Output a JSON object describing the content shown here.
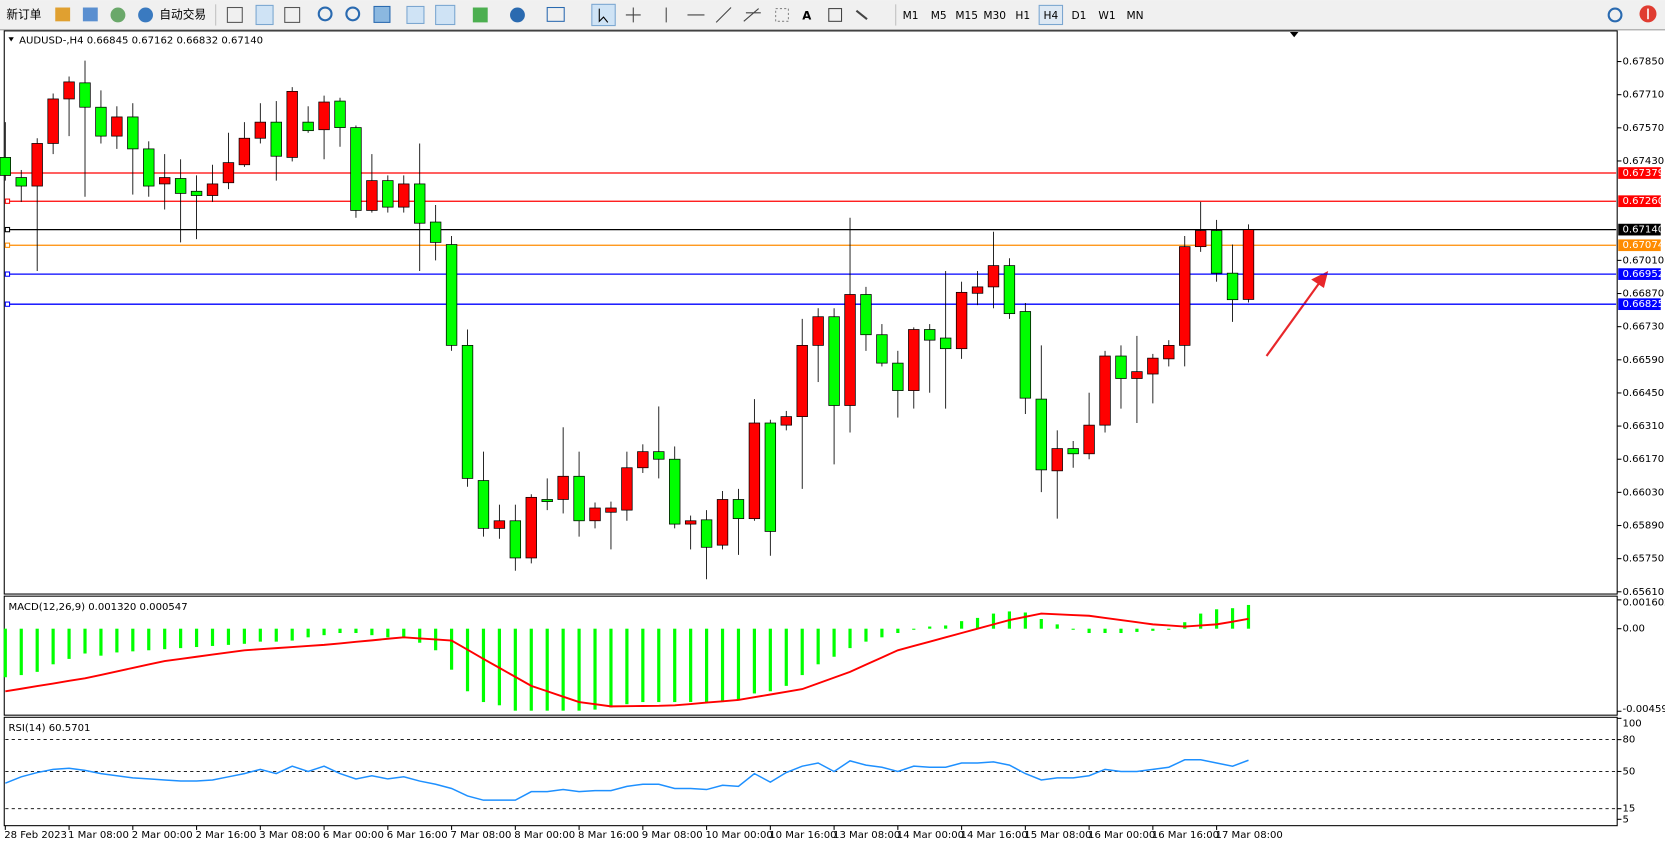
{
  "toolbar": {
    "new_order": "新订单",
    "auto_trading": "自动交易",
    "timeframes": [
      "M1",
      "M5",
      "M15",
      "M30",
      "H1",
      "H4",
      "D1",
      "W1",
      "MN"
    ],
    "active_timeframe": "H4"
  },
  "chart_data": [
    {
      "type": "candlestick",
      "title": "AUDUSD-,H4  0.66845 0.67162 0.66832 0.67140",
      "up_color": "#ff0000",
      "down_color": "#00ff00",
      "categories": [
        "28 Feb 2023",
        null,
        null,
        null,
        "1 Mar 08:00",
        null,
        null,
        null,
        "2 Mar 00:00",
        null,
        null,
        null,
        "2 Mar 16:00",
        null,
        null,
        null,
        "3 Mar 08:00",
        null,
        null,
        null,
        "6 Mar 00:00",
        null,
        null,
        null,
        "6 Mar 16:00",
        null,
        null,
        null,
        "7 Mar 08:00",
        null,
        null,
        null,
        "8 Mar 00:00",
        null,
        null,
        null,
        "8 Mar 16:00",
        null,
        null,
        null,
        "9 Mar 08:00",
        null,
        null,
        null,
        "10 Mar 00:00",
        null,
        null,
        null,
        "10 Mar 16:00",
        null,
        null,
        null,
        "13 Mar 08:00",
        null,
        null,
        null,
        "14 Mar 00:00",
        null,
        null,
        null,
        "14 Mar 16:00",
        null,
        null,
        null,
        "15 Mar 08:00",
        null,
        null,
        null,
        "16 Mar 00:00",
        null,
        null,
        null,
        "16 Mar 16:00",
        null,
        null,
        null,
        "17 Mar 08:00",
        null,
        null
      ],
      "open": [
        0.67445,
        0.6736,
        0.67324,
        0.67504,
        0.67692,
        0.6776,
        0.67657,
        0.67535,
        0.67616,
        0.67481,
        0.67333,
        0.67356,
        0.67302,
        0.67284,
        0.67338,
        0.67414,
        0.67526,
        0.67594,
        0.67445,
        0.67594,
        0.67562,
        0.67683,
        0.67571,
        0.67221,
        0.67347,
        0.67235,
        0.67333,
        0.67172,
        0.67077,
        0.66651,
        0.6608,
        0.65878,
        0.6591,
        0.65753,
        0.66,
        0.66,
        0.66098,
        0.6591,
        0.65946,
        0.65955,
        0.66134,
        0.66202,
        0.6617,
        0.65896,
        0.65914,
        0.65807,
        0.66,
        0.65919,
        0.66323,
        0.66314,
        0.6635,
        0.66651,
        0.66772,
        0.66397,
        0.66866,
        0.66696,
        0.66576,
        0.6646,
        0.66718,
        0.66682,
        0.66637,
        0.66871,
        0.66898,
        0.66988,
        0.66794,
        0.66424,
        0.66121,
        0.66215,
        0.66193,
        0.66314,
        0.66606,
        0.66511,
        0.6653,
        0.66594,
        0.66651,
        0.67068,
        0.67136,
        0.66956,
        0.66845
      ],
      "high": [
        0.67594,
        0.67392,
        0.67526,
        0.67715,
        0.67787,
        0.67854,
        0.67728,
        0.67661,
        0.67674,
        0.67513,
        0.67459,
        0.67437,
        0.67369,
        0.67414,
        0.67549,
        0.67594,
        0.67674,
        0.67683,
        0.67742,
        0.67661,
        0.67706,
        0.67697,
        0.6758,
        0.67459,
        0.67369,
        0.67369,
        0.67504,
        0.67244,
        0.67113,
        0.66718,
        0.66202,
        0.65978,
        0.65978,
        0.66022,
        0.66089,
        0.66305,
        0.66202,
        0.65987,
        0.65991,
        0.66202,
        0.66233,
        0.66393,
        0.66224,
        0.65932,
        0.65955,
        0.66036,
        0.66045,
        0.66424,
        0.66337,
        0.66374,
        0.66763,
        0.66808,
        0.66808,
        0.6719,
        0.66898,
        0.66741,
        0.66628,
        0.66727,
        0.66741,
        0.66965,
        0.6692,
        0.66965,
        0.67131,
        0.67019,
        0.6683,
        0.66651,
        0.66292,
        0.66247,
        0.66451,
        0.66628,
        0.66651,
        0.66691,
        0.66615,
        0.66673,
        0.67113,
        0.67257,
        0.67181,
        0.67077,
        0.67162
      ],
      "low": [
        0.67347,
        0.67257,
        0.66965,
        0.67459,
        0.67535,
        0.67279,
        0.67504,
        0.67481,
        0.67288,
        0.67279,
        0.67225,
        0.67086,
        0.671,
        0.67257,
        0.67311,
        0.67405,
        0.67504,
        0.67347,
        0.67428,
        0.67549,
        0.67437,
        0.6749,
        0.6719,
        0.67212,
        0.67212,
        0.67212,
        0.66965,
        0.6701,
        0.66628,
        0.66054,
        0.65843,
        0.65834,
        0.65699,
        0.6573,
        0.65955,
        0.65941,
        0.65843,
        0.65878,
        0.65789,
        0.6591,
        0.66112,
        0.66089,
        0.65878,
        0.65789,
        0.65663,
        0.65789,
        0.65766,
        0.6591,
        0.65762,
        0.66292,
        0.66045,
        0.66496,
        0.66148,
        0.66283,
        0.66628,
        0.66562,
        0.66346,
        0.66384,
        0.66451,
        0.66384,
        0.66594,
        0.66821,
        0.66808,
        0.66763,
        0.66361,
        0.66031,
        0.65919,
        0.66134,
        0.6617,
        0.66283,
        0.66384,
        0.66323,
        0.66406,
        0.66562,
        0.66562,
        0.67046,
        0.6692,
        0.6675,
        0.66832
      ],
      "close": [
        0.67369,
        0.67324,
        0.67504,
        0.67692,
        0.67764,
        0.67657,
        0.67535,
        0.67616,
        0.67481,
        0.67324,
        0.6736,
        0.67293,
        0.67284,
        0.67333,
        0.67423,
        0.67526,
        0.67594,
        0.6745,
        0.67724,
        0.67558,
        0.67679,
        0.67571,
        0.67221,
        0.67347,
        0.67235,
        0.67333,
        0.67167,
        0.67086,
        0.66651,
        0.66089,
        0.65878,
        0.6591,
        0.65753,
        0.66009,
        0.65991,
        0.66098,
        0.6591,
        0.65964,
        0.65964,
        0.66134,
        0.66202,
        0.6617,
        0.65896,
        0.6591,
        0.65798,
        0.66,
        0.65919,
        0.66323,
        0.65865,
        0.6635,
        0.66651,
        0.66772,
        0.66397,
        0.66866,
        0.66696,
        0.66576,
        0.6646,
        0.66718,
        0.66673,
        0.66637,
        0.66875,
        0.66898,
        0.66988,
        0.66785,
        0.66428,
        0.66125,
        0.66215,
        0.66193,
        0.66314,
        0.66606,
        0.66511,
        0.6654,
        0.66597,
        0.66651,
        0.67068,
        0.67136,
        0.66956,
        0.66844,
        0.6714
      ],
      "ylim": [
        0.65605,
        0.67975
      ],
      "yticks": [
        {
          "value": 0.6785,
          "label": "0.67850"
        },
        {
          "value": 0.6771,
          "label": "0.67710"
        },
        {
          "value": 0.6757,
          "label": "0.67570"
        },
        {
          "value": 0.6743,
          "label": "0.67430"
        },
        {
          "value": 0.6701,
          "label": "0.67010"
        },
        {
          "value": 0.6687,
          "label": "0.66870"
        },
        {
          "value": 0.6673,
          "label": "0.66730"
        },
        {
          "value": 0.6659,
          "label": "0.66590"
        },
        {
          "value": 0.6645,
          "label": "0.66450"
        },
        {
          "value": 0.6631,
          "label": "0.66310"
        },
        {
          "value": 0.6617,
          "label": "0.66170"
        },
        {
          "value": 0.6603,
          "label": "0.66030"
        },
        {
          "value": 0.6589,
          "label": "0.65890"
        },
        {
          "value": 0.6575,
          "label": "0.65750"
        },
        {
          "value": 0.6561,
          "label": "0.65610"
        }
      ],
      "hlines": [
        {
          "value": 0.67379,
          "label": "0.67379",
          "color": "#ff0000"
        },
        {
          "value": 0.6726,
          "label": "0.67260",
          "color": "#ff0000"
        },
        {
          "value": 0.67074,
          "label": "0.67074",
          "color": "#ff8c00"
        },
        {
          "value": 0.66952,
          "label": "0.66952",
          "color": "#0000ff"
        },
        {
          "value": 0.66825,
          "label": "0.66825",
          "color": "#0000ff"
        }
      ],
      "bid_line": {
        "value": 0.6714,
        "label": "0.67140",
        "color": "#000000"
      }
    },
    {
      "type": "macd",
      "title": "MACD(12,26,9) 0.001320 0.000547",
      "histogram": {
        "color": "#00ff00",
        "values": [
          -0.0027,
          -0.00258,
          -0.0024,
          -0.00198,
          -0.00168,
          -0.00138,
          -0.0015,
          -0.00132,
          -0.00126,
          -0.0012,
          -0.00114,
          -0.00108,
          -0.00102,
          -0.00096,
          -0.0009,
          -0.00084,
          -0.00072,
          -0.00072,
          -0.00066,
          -0.00048,
          -0.00036,
          -0.00024,
          -0.00024,
          -0.00036,
          -0.00048,
          -0.00048,
          -0.00078,
          -0.0012,
          -0.00228,
          -0.00348,
          -0.00408,
          -0.00426,
          -0.00456,
          -0.00456,
          -0.00456,
          -0.00456,
          -0.00456,
          -0.0045,
          -0.00438,
          -0.0042,
          -0.00408,
          -0.00408,
          -0.00408,
          -0.00408,
          -0.00408,
          -0.00408,
          -0.00396,
          -0.0036,
          -0.00348,
          -0.00318,
          -0.00258,
          -0.00198,
          -0.00156,
          -0.00108,
          -0.00072,
          -0.00048,
          -0.00024,
          -6e-05,
          0.00012,
          0.00018,
          0.00042,
          0.0006,
          0.00084,
          0.00096,
          0.0009,
          0.00054,
          0.00024,
          -6e-05,
          -0.00024,
          -0.00024,
          -0.00024,
          -0.00018,
          -0.00012,
          -6e-05,
          0.00036,
          0.00084,
          0.00108,
          0.00114,
          0.00132
        ]
      },
      "signal": {
        "color": "#ff0000",
        "values": [
          -0.00348,
          -0.00334,
          -0.00319,
          -0.00305,
          -0.0029,
          -0.00276,
          -0.00257,
          -0.00238,
          -0.00218,
          -0.00199,
          -0.0018,
          -0.00168,
          -0.00156,
          -0.00144,
          -0.00132,
          -0.0012,
          -0.00114,
          -0.00108,
          -0.00102,
          -0.00096,
          -0.0009,
          -0.00082,
          -0.00073,
          -0.00065,
          -0.00056,
          -0.00048,
          -0.00054,
          -0.0006,
          -0.00066,
          -0.00117,
          -0.00168,
          -0.00218,
          -0.00268,
          -0.00318,
          -0.00348,
          -0.00378,
          -0.00408,
          -0.0042,
          -0.00432,
          -0.00431,
          -0.0043,
          -0.00429,
          -0.00426,
          -0.00419,
          -0.00411,
          -0.00404,
          -0.00396,
          -0.00381,
          -0.00366,
          -0.00351,
          -0.00336,
          -0.00304,
          -0.00272,
          -0.0024,
          -0.002,
          -0.0016,
          -0.0012,
          -0.00096,
          -0.00072,
          -0.00048,
          -0.00024,
          0,
          0.00024,
          0.00048,
          0.00066,
          0.00084,
          0.0008,
          0.00076,
          0.00072,
          0.0006,
          0.00048,
          0.00036,
          0.00024,
          0.00018,
          0.00012,
          0.00018,
          0.00024,
          0.00039,
          0.000547
        ]
      },
      "ylim": [
        -0.00475,
        0.00175
      ],
      "yticks": [
        0.001602,
        {
          "value": 0,
          "label": "0.00"
        },
        -0.004592
      ]
    },
    {
      "type": "rsi",
      "title": "RSI(14) 60.5701",
      "series": [
        {
          "color": "#1e90ff",
          "values": [
            39,
            45,
            49,
            52,
            53,
            51,
            48,
            46,
            44,
            43,
            42,
            41,
            41,
            42,
            45,
            48,
            52,
            48,
            55,
            50,
            55,
            48,
            43,
            46,
            43,
            45,
            41,
            38,
            34,
            27,
            23,
            23,
            23,
            31,
            31,
            33,
            31,
            32,
            32,
            36,
            38,
            38,
            34,
            34,
            33,
            37,
            36,
            48,
            40,
            49,
            55,
            58,
            50,
            60,
            56,
            54,
            50,
            55,
            54,
            54,
            58,
            58,
            59,
            56,
            48,
            42,
            44,
            44,
            46,
            52,
            50,
            50,
            52,
            54,
            61,
            61,
            58,
            55,
            60.5701
          ]
        }
      ],
      "ylim": [
        0,
        100
      ],
      "yticks": [
        100,
        80,
        50,
        15,
        5
      ],
      "levels": [
        80,
        50,
        15
      ]
    }
  ]
}
